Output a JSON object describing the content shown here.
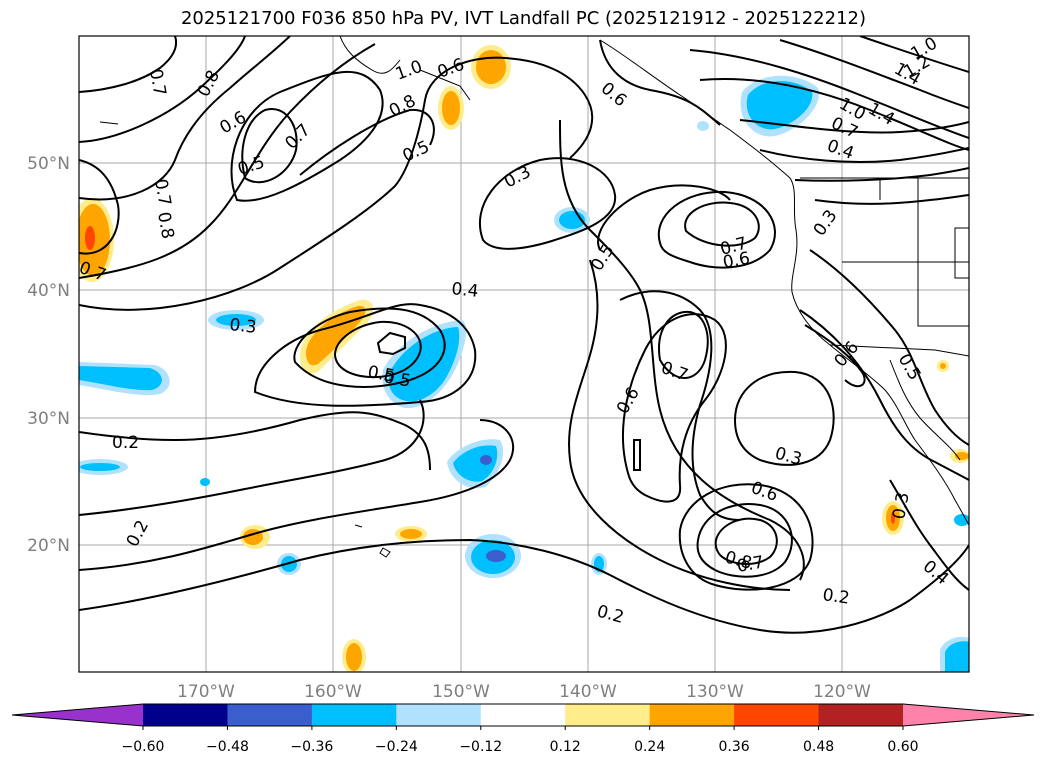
{
  "title": "2025121700 F036 850 hPa PV, IVT Landfall PC (2025121912 - 2025122212)",
  "latitude_labels": [
    "50°N",
    "40°N",
    "30°N",
    "20°N"
  ],
  "longitude_labels": [
    "170°W",
    "160°W",
    "150°W",
    "140°W",
    "130°W",
    "120°W"
  ],
  "contour_labels": [
    "0.7",
    "0.8",
    "0.6",
    "0.5",
    "0.7",
    "0.7",
    "0.8",
    "0.7",
    "0.6",
    "1.0",
    "0.8",
    "0.5",
    "0.3",
    "0.4",
    "0.3",
    "0.5",
    "0.5",
    "0.2",
    "0.2",
    "0.6",
    "0.7",
    "0.6",
    "0.7",
    "0.6",
    "0.3",
    "0.6",
    "0.8",
    "0.7",
    "0.2",
    "0.2",
    "0.5",
    "0.3",
    "0.6",
    "0.5",
    "0.3",
    "0.4",
    "1.0",
    "1.2",
    "1.4",
    "1.4",
    "1.0",
    "0.7",
    "0.4"
  ],
  "colorbar": {
    "ticks": [
      "−0.60",
      "−0.48",
      "−0.36",
      "−0.24",
      "−0.12",
      "0.12",
      "0.24",
      "0.36",
      "0.48",
      "0.60"
    ],
    "colors": [
      "#9932cc",
      "#00008b",
      "#3a5fcd",
      "#00bfff",
      "#b0e2ff",
      "#ffffff",
      "#ffec8b",
      "#ffa500",
      "#ff4500",
      "#b22222",
      "#ff82ab"
    ]
  }
}
